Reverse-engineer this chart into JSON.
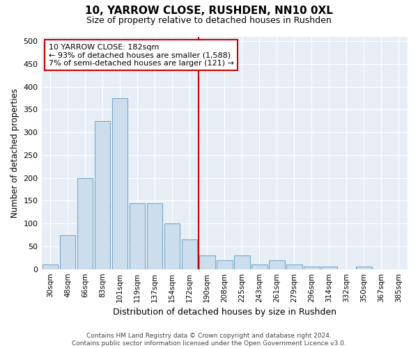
{
  "title1": "10, YARROW CLOSE, RUSHDEN, NN10 0XL",
  "title2": "Size of property relative to detached houses in Rushden",
  "xlabel": "Distribution of detached houses by size in Rushden",
  "ylabel": "Number of detached properties",
  "bar_labels": [
    "30sqm",
    "48sqm",
    "66sqm",
    "83sqm",
    "101sqm",
    "119sqm",
    "137sqm",
    "154sqm",
    "172sqm",
    "190sqm",
    "208sqm",
    "225sqm",
    "243sqm",
    "261sqm",
    "279sqm",
    "296sqm",
    "314sqm",
    "332sqm",
    "350sqm",
    "367sqm",
    "385sqm"
  ],
  "bar_values": [
    10,
    75,
    200,
    325,
    375,
    145,
    145,
    100,
    65,
    30,
    20,
    30,
    10,
    20,
    10,
    5,
    5,
    0,
    5,
    0,
    0
  ],
  "bar_color": "#ccdded",
  "bar_edgecolor": "#7aaac8",
  "property_line_x": 8.5,
  "annotation_line1": "10 YARROW CLOSE: 182sqm",
  "annotation_line2": "← 93% of detached houses are smaller (1,588)",
  "annotation_line3": "7% of semi-detached houses are larger (121) →",
  "annotation_box_color": "#ffffff",
  "annotation_box_edgecolor": "#cc0000",
  "vline_color": "#cc0000",
  "ylim": [
    0,
    510
  ],
  "yticks": [
    0,
    50,
    100,
    150,
    200,
    250,
    300,
    350,
    400,
    450,
    500
  ],
  "background_color": "#e8eef5",
  "grid_color": "#ffffff",
  "title_fontsize": 11,
  "subtitle_fontsize": 9,
  "footer_line1": "Contains HM Land Registry data © Crown copyright and database right 2024.",
  "footer_line2": "Contains public sector information licensed under the Open Government Licence v3.0."
}
